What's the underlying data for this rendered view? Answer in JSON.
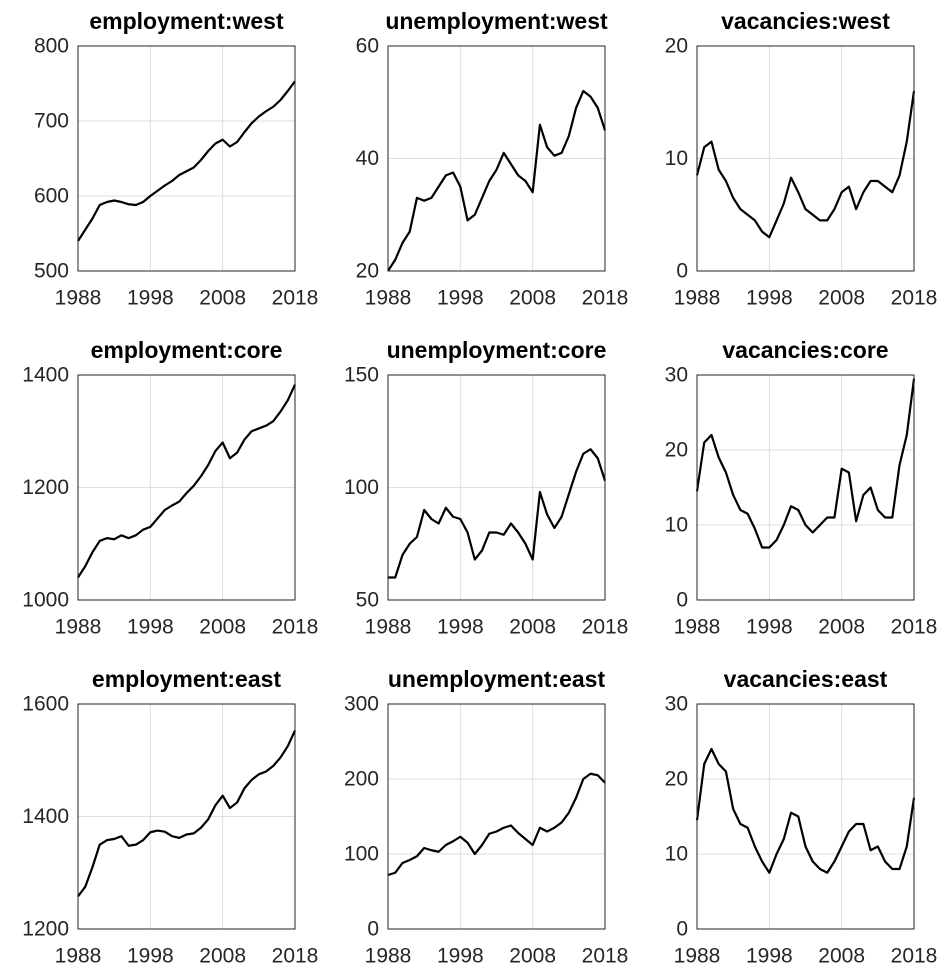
{
  "chart_data": [
    {
      "type": "line",
      "title": "employment:west",
      "color": "#000000",
      "grid": true,
      "x": [
        1988,
        1989,
        1990,
        1991,
        1992,
        1993,
        1994,
        1995,
        1996,
        1997,
        1998,
        1999,
        2000,
        2001,
        2002,
        2003,
        2004,
        2005,
        2006,
        2007,
        2008,
        2009,
        2010,
        2011,
        2012,
        2013,
        2014,
        2015,
        2016,
        2017,
        2018
      ],
      "values": [
        540,
        555,
        570,
        588,
        592,
        594,
        592,
        589,
        588,
        592,
        600,
        607,
        614,
        620,
        628,
        633,
        638,
        648,
        660,
        670,
        675,
        666,
        672,
        685,
        697,
        706,
        713,
        719,
        728,
        740,
        753
      ],
      "xlim": [
        1988,
        2018
      ],
      "xticks": [
        1988,
        1998,
        2008,
        2018
      ],
      "ylim": [
        500,
        800
      ],
      "yticks": [
        500,
        600,
        700,
        800
      ]
    },
    {
      "type": "line",
      "title": "unemployment:west",
      "color": "#000000",
      "grid": true,
      "x": [
        1988,
        1989,
        1990,
        1991,
        1992,
        1993,
        1994,
        1995,
        1996,
        1997,
        1998,
        1999,
        2000,
        2001,
        2002,
        2003,
        2004,
        2005,
        2006,
        2007,
        2008,
        2009,
        2010,
        2011,
        2012,
        2013,
        2014,
        2015,
        2016,
        2017,
        2018
      ],
      "values": [
        20,
        22,
        25,
        27,
        33,
        32.5,
        33,
        35,
        37,
        37.5,
        35,
        29,
        30,
        33,
        36,
        38,
        41,
        39,
        37,
        36,
        34,
        46,
        42,
        40.5,
        41,
        44,
        49,
        52,
        51,
        49,
        45
      ],
      "xlim": [
        1988,
        2018
      ],
      "xticks": [
        1988,
        1998,
        2008,
        2018
      ],
      "ylim": [
        20,
        60
      ],
      "yticks": [
        20,
        40,
        60
      ]
    },
    {
      "type": "line",
      "title": "vacancies:west",
      "color": "#000000",
      "grid": true,
      "x": [
        1988,
        1989,
        1990,
        1991,
        1992,
        1993,
        1994,
        1995,
        1996,
        1997,
        1998,
        1999,
        2000,
        2001,
        2002,
        2003,
        2004,
        2005,
        2006,
        2007,
        2008,
        2009,
        2010,
        2011,
        2012,
        2013,
        2014,
        2015,
        2016,
        2017,
        2018
      ],
      "values": [
        8.5,
        11,
        11.5,
        9,
        8,
        6.5,
        5.5,
        5,
        4.5,
        3.5,
        3,
        4.5,
        6,
        8.3,
        7,
        5.5,
        5,
        4.5,
        4.5,
        5.5,
        7,
        7.5,
        5.5,
        7,
        8,
        8,
        7.5,
        7,
        8.5,
        11.5,
        16
      ],
      "xlim": [
        1988,
        2018
      ],
      "xticks": [
        1988,
        1998,
        2008,
        2018
      ],
      "ylim": [
        0,
        20
      ],
      "yticks": [
        0,
        10,
        20
      ]
    },
    {
      "type": "line",
      "title": "employment:core",
      "color": "#000000",
      "grid": true,
      "x": [
        1988,
        1989,
        1990,
        1991,
        1992,
        1993,
        1994,
        1995,
        1996,
        1997,
        1998,
        1999,
        2000,
        2001,
        2002,
        2003,
        2004,
        2005,
        2006,
        2007,
        2008,
        2009,
        2010,
        2011,
        2012,
        2013,
        2014,
        2015,
        2016,
        2017,
        2018
      ],
      "values": [
        1040,
        1060,
        1085,
        1105,
        1110,
        1108,
        1115,
        1110,
        1115,
        1125,
        1130,
        1145,
        1160,
        1168,
        1175,
        1190,
        1203,
        1220,
        1240,
        1265,
        1280,
        1252,
        1262,
        1285,
        1300,
        1305,
        1310,
        1318,
        1335,
        1355,
        1383
      ],
      "xlim": [
        1988,
        2018
      ],
      "xticks": [
        1988,
        1998,
        2008,
        2018
      ],
      "ylim": [
        1000,
        1400
      ],
      "yticks": [
        1000,
        1200,
        1400
      ]
    },
    {
      "type": "line",
      "title": "unemployment:core",
      "color": "#000000",
      "grid": true,
      "x": [
        1988,
        1989,
        1990,
        1991,
        1992,
        1993,
        1994,
        1995,
        1996,
        1997,
        1998,
        1999,
        2000,
        2001,
        2002,
        2003,
        2004,
        2005,
        2006,
        2007,
        2008,
        2009,
        2010,
        2011,
        2012,
        2013,
        2014,
        2015,
        2016,
        2017,
        2018
      ],
      "values": [
        60,
        60,
        70,
        75,
        78,
        90,
        86,
        84,
        91,
        87,
        86,
        80,
        68,
        72,
        80,
        80,
        79,
        84,
        80,
        75,
        68,
        98,
        88,
        82,
        87,
        97,
        107,
        115,
        117,
        113,
        103
      ],
      "xlim": [
        1988,
        2018
      ],
      "xticks": [
        1988,
        1998,
        2008,
        2018
      ],
      "ylim": [
        50,
        150
      ],
      "yticks": [
        50,
        100,
        150
      ]
    },
    {
      "type": "line",
      "title": "vacancies:core",
      "color": "#000000",
      "grid": true,
      "x": [
        1988,
        1989,
        1990,
        1991,
        1992,
        1993,
        1994,
        1995,
        1996,
        1997,
        1998,
        1999,
        2000,
        2001,
        2002,
        2003,
        2004,
        2005,
        2006,
        2007,
        2008,
        2009,
        2010,
        2011,
        2012,
        2013,
        2014,
        2015,
        2016,
        2017,
        2018
      ],
      "values": [
        14.5,
        21,
        22,
        19,
        17,
        14,
        12,
        11.5,
        9.5,
        7,
        7,
        8,
        10,
        12.5,
        12,
        10,
        9,
        10,
        11,
        11,
        17.5,
        17,
        10.5,
        14,
        15,
        12,
        11,
        11,
        18,
        22,
        29.5
      ],
      "xlim": [
        1988,
        2018
      ],
      "xticks": [
        1988,
        1998,
        2008,
        2018
      ],
      "ylim": [
        0,
        30
      ],
      "yticks": [
        0,
        10,
        20,
        30
      ]
    },
    {
      "type": "line",
      "title": "employment:east",
      "color": "#000000",
      "grid": true,
      "x": [
        1988,
        1989,
        1990,
        1991,
        1992,
        1993,
        1994,
        1995,
        1996,
        1997,
        1998,
        1999,
        2000,
        2001,
        2002,
        2003,
        2004,
        2005,
        2006,
        2007,
        2008,
        2009,
        2010,
        2011,
        2012,
        2013,
        2014,
        2015,
        2016,
        2017,
        2018
      ],
      "values": [
        1258,
        1275,
        1310,
        1350,
        1358,
        1360,
        1365,
        1348,
        1350,
        1358,
        1372,
        1375,
        1373,
        1365,
        1362,
        1368,
        1370,
        1380,
        1395,
        1420,
        1437,
        1415,
        1425,
        1450,
        1465,
        1475,
        1480,
        1490,
        1505,
        1525,
        1553
      ],
      "xlim": [
        1988,
        2018
      ],
      "xticks": [
        1988,
        1998,
        2008,
        2018
      ],
      "ylim": [
        1200,
        1600
      ],
      "yticks": [
        1200,
        1400,
        1600
      ]
    },
    {
      "type": "line",
      "title": "unemployment:east",
      "color": "#000000",
      "grid": true,
      "x": [
        1988,
        1989,
        1990,
        1991,
        1992,
        1993,
        1994,
        1995,
        1996,
        1997,
        1998,
        1999,
        2000,
        2001,
        2002,
        2003,
        2004,
        2005,
        2006,
        2007,
        2008,
        2009,
        2010,
        2011,
        2012,
        2013,
        2014,
        2015,
        2016,
        2017,
        2018
      ],
      "values": [
        72,
        75,
        88,
        92,
        97,
        108,
        105,
        103,
        112,
        117,
        123,
        115,
        100,
        112,
        127,
        130,
        135,
        138,
        128,
        120,
        112,
        135,
        130,
        135,
        142,
        155,
        175,
        200,
        207,
        205,
        195
      ],
      "xlim": [
        1988,
        2018
      ],
      "xticks": [
        1988,
        1998,
        2008,
        2018
      ],
      "ylim": [
        0,
        300
      ],
      "yticks": [
        0,
        100,
        200,
        300
      ]
    },
    {
      "type": "line",
      "title": "vacancies:east",
      "color": "#000000",
      "grid": true,
      "x": [
        1988,
        1989,
        1990,
        1991,
        1992,
        1993,
        1994,
        1995,
        1996,
        1997,
        1998,
        1999,
        2000,
        2001,
        2002,
        2003,
        2004,
        2005,
        2006,
        2007,
        2008,
        2009,
        2010,
        2011,
        2012,
        2013,
        2014,
        2015,
        2016,
        2017,
        2018
      ],
      "values": [
        14.5,
        22,
        24,
        22,
        21,
        16,
        14,
        13.5,
        11,
        9,
        7.5,
        10,
        12,
        15.5,
        15,
        11,
        9,
        8,
        7.5,
        9,
        11,
        13,
        14,
        14,
        10.5,
        11,
        9,
        8,
        8,
        11,
        17.5
      ],
      "xlim": [
        1988,
        2018
      ],
      "xticks": [
        1988,
        1998,
        2008,
        2018
      ],
      "ylim": [
        0,
        30
      ],
      "yticks": [
        0,
        10,
        20,
        30
      ]
    }
  ]
}
